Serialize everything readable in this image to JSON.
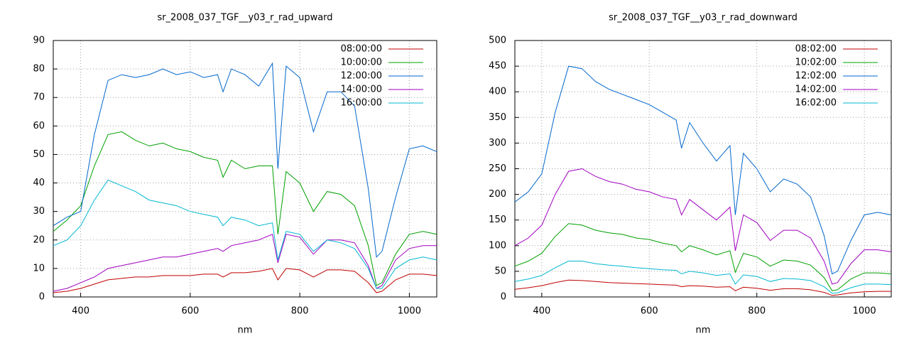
{
  "chart_data": [
    {
      "type": "line",
      "title": "sr_2008_037_TGF__y03_r_rad_upward",
      "x_label": "nm",
      "x": [
        350,
        375,
        400,
        425,
        450,
        475,
        500,
        525,
        550,
        575,
        600,
        625,
        650,
        660,
        675,
        700,
        725,
        750,
        760,
        775,
        800,
        825,
        850,
        875,
        900,
        925,
        940,
        950,
        975,
        1000,
        1025,
        1050
      ],
      "xlim": [
        350,
        1050
      ],
      "xticks": [
        400,
        600,
        800,
        1000
      ],
      "ylim": [
        0,
        90
      ],
      "yticks": [
        0,
        10,
        20,
        30,
        40,
        50,
        60,
        70,
        80,
        90
      ],
      "grid": true,
      "legend": "top-right",
      "series": [
        {
          "name": "08:00:00",
          "color": "#c00000",
          "values": [
            1.5,
            2,
            3,
            4.5,
            6,
            6.5,
            7,
            7,
            7.5,
            7.5,
            7.5,
            8,
            8,
            7,
            8.5,
            8.5,
            9,
            10,
            6,
            10,
            9.5,
            7,
            9.5,
            9.5,
            9,
            5,
            1.5,
            2,
            6,
            8,
            8,
            7.5
          ]
        },
        {
          "name": "10:00:00",
          "color": "#00a000",
          "values": [
            23,
            27,
            32,
            46,
            57,
            58,
            55,
            53,
            54,
            52,
            51,
            49,
            48,
            42,
            48,
            45,
            46,
            46,
            22,
            44,
            40,
            30,
            37,
            36,
            32,
            18,
            4,
            5,
            15,
            22,
            23,
            22
          ]
        },
        {
          "name": "12:00:00",
          "color": "#0066cc",
          "values": [
            25,
            28,
            30,
            57,
            76,
            78,
            77,
            78,
            80,
            78,
            79,
            77,
            78,
            72,
            80,
            78,
            74,
            82,
            45,
            81,
            77,
            58,
            72,
            72,
            67,
            38,
            14,
            16,
            35,
            52,
            53,
            51
          ]
        },
        {
          "name": "14:00:00",
          "color": "#a000c0",
          "values": [
            2,
            3,
            5,
            7,
            10,
            11,
            12,
            13,
            14,
            14,
            15,
            16,
            17,
            16,
            18,
            19,
            20,
            22,
            12,
            22,
            21,
            15,
            20,
            20,
            19,
            11,
            3,
            4,
            13,
            17,
            18,
            18
          ]
        },
        {
          "name": "16:00:00",
          "color": "#00b8d0",
          "values": [
            18,
            20,
            25,
            34,
            41,
            39,
            37,
            34,
            33,
            32,
            30,
            29,
            28,
            25,
            28,
            27,
            25,
            26,
            13,
            23,
            22,
            16,
            20,
            19,
            17,
            10,
            3,
            3,
            10,
            13,
            14,
            13
          ]
        }
      ]
    },
    {
      "type": "line",
      "title": "sr_2008_037_TGF__y03_r_rad_downward",
      "x_label": "nm",
      "x": [
        350,
        375,
        400,
        425,
        450,
        475,
        500,
        525,
        550,
        575,
        600,
        625,
        650,
        660,
        675,
        700,
        725,
        750,
        760,
        775,
        800,
        825,
        850,
        875,
        900,
        925,
        940,
        950,
        975,
        1000,
        1025,
        1050
      ],
      "xlim": [
        350,
        1050
      ],
      "xticks": [
        400,
        600,
        800,
        1000
      ],
      "ylim": [
        0,
        500
      ],
      "yticks": [
        0,
        50,
        100,
        150,
        200,
        250,
        300,
        350,
        400,
        450,
        500
      ],
      "grid": true,
      "legend": "top-right",
      "series": [
        {
          "name": "08:02:00",
          "color": "#c00000",
          "values": [
            15,
            18,
            22,
            28,
            33,
            32,
            30,
            28,
            27,
            26,
            25,
            24,
            23,
            20,
            22,
            21,
            19,
            20,
            12,
            19,
            17,
            13,
            16,
            16,
            14,
            9,
            3,
            4,
            8,
            10,
            11,
            11
          ]
        },
        {
          "name": "10:02:00",
          "color": "#00a000",
          "values": [
            60,
            70,
            85,
            118,
            143,
            140,
            130,
            125,
            122,
            115,
            112,
            105,
            100,
            88,
            100,
            92,
            82,
            90,
            48,
            85,
            78,
            60,
            72,
            70,
            62,
            38,
            12,
            14,
            35,
            47,
            47,
            45
          ]
        },
        {
          "name": "12:02:00",
          "color": "#0066cc",
          "values": [
            185,
            205,
            240,
            360,
            450,
            445,
            420,
            405,
            395,
            385,
            375,
            360,
            345,
            290,
            340,
            300,
            265,
            295,
            160,
            280,
            250,
            205,
            230,
            220,
            195,
            120,
            45,
            50,
            110,
            160,
            165,
            160
          ]
        },
        {
          "name": "14:02:00",
          "color": "#a000c0",
          "values": [
            100,
            115,
            140,
            200,
            245,
            250,
            235,
            225,
            220,
            210,
            205,
            195,
            190,
            160,
            190,
            170,
            150,
            175,
            90,
            160,
            145,
            110,
            130,
            130,
            115,
            70,
            25,
            28,
            65,
            92,
            92,
            88
          ]
        },
        {
          "name": "16:02:00",
          "color": "#00b8d0",
          "values": [
            30,
            35,
            42,
            57,
            70,
            70,
            65,
            62,
            60,
            57,
            55,
            53,
            52,
            45,
            50,
            47,
            42,
            45,
            25,
            43,
            40,
            30,
            36,
            35,
            32,
            20,
            7,
            8,
            18,
            25,
            25,
            24
          ]
        }
      ]
    }
  ]
}
